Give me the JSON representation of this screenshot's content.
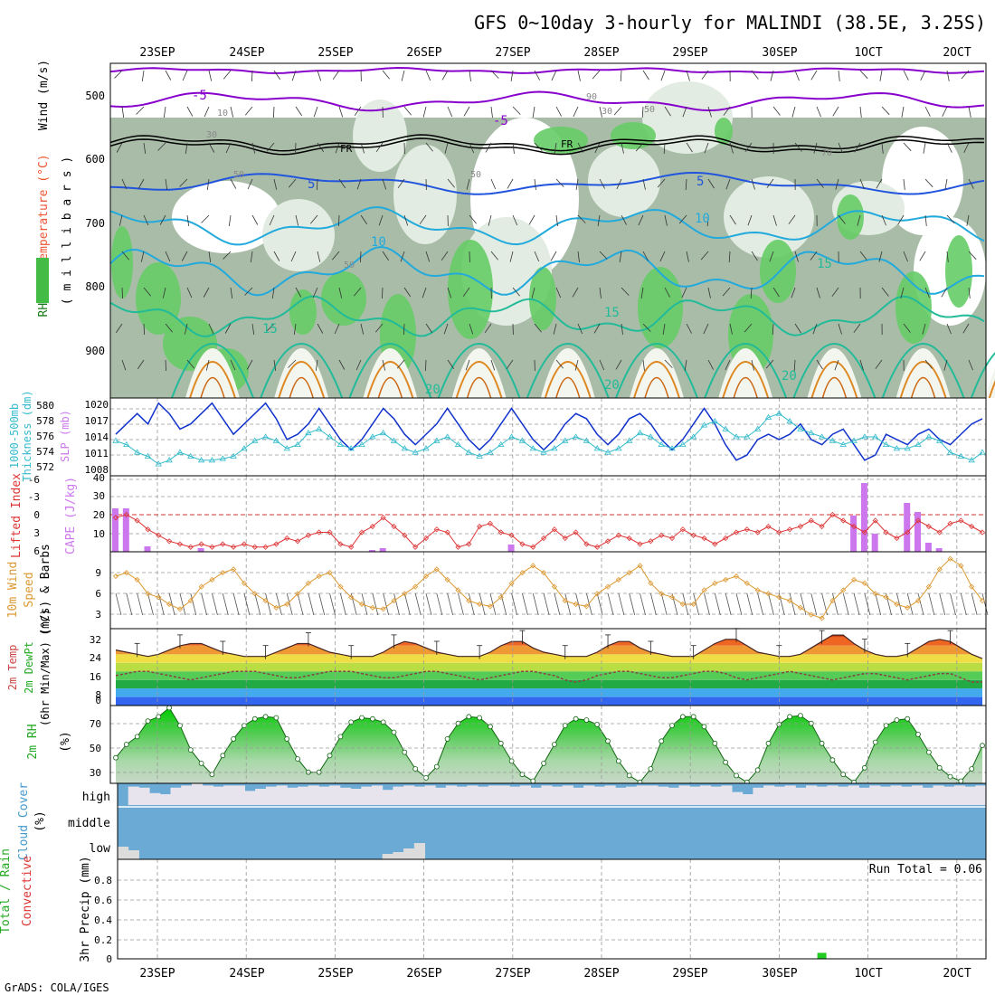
{
  "title": "GFS 0~10day 3-hourly for MALINDI (38.5E, 3.25S)",
  "footer": "GrADS: COLA/IGES",
  "dates": [
    "23SEP",
    "24SEP",
    "25SEP",
    "26SEP",
    "27SEP",
    "28SEP",
    "29SEP",
    "30SEP",
    "1OCT",
    "2OCT"
  ],
  "colors": {
    "frame": "#000000",
    "grid": "#999999",
    "rh_dark": "#a8bca8",
    "rh_mid": "#c8d8c8",
    "rh_light": "#e2ece2",
    "rh_green": "#66cc66",
    "temp_purple": "#8800cc",
    "temp_blue": "#2255dd",
    "temp_cyan": "#22aadd",
    "temp_teal": "#22bb99",
    "temp_orange": "#dd8822",
    "slp": "#1133cc",
    "thick": "#33bbcc",
    "lifted": "#dd3333",
    "cape": "#cc77ee",
    "wind": "#dd9933",
    "barb": "#555555",
    "rh2m": "#22bb22",
    "cloud": "#6aaad4",
    "cloud_gap": "#e8e4ee",
    "precip": "#22cc22"
  },
  "chart_data": [
    {
      "type": "heatmap",
      "name": "upper-air",
      "ylabel_parts": [
        "RH (%)",
        "Temperature (°C)",
        "Wind (m/s)"
      ],
      "yunit": "( m i l l i b a r s )",
      "y_ticks": [
        500,
        600,
        700,
        800,
        900
      ],
      "ylim": [
        950,
        450
      ],
      "freezing_label": "FR",
      "temp_contour_labels": [
        "-5",
        "-5",
        "5",
        "5",
        "10",
        "10",
        "15",
        "15",
        "15",
        "20",
        "20",
        "20"
      ],
      "rh_contour_labels": [
        "10",
        "30",
        "30",
        "50",
        "50",
        "50",
        "50",
        "70",
        "90"
      ]
    },
    {
      "type": "line",
      "name": "thickness-slp",
      "ylabel_left": [
        "1000-500mb",
        "Thickness (dm)"
      ],
      "ylabel_right": "SLP (mb)",
      "y_ticks_left": [
        572,
        574,
        576,
        578,
        580
      ],
      "y_ticks_right": [
        1008,
        1011,
        1014,
        1017,
        1020
      ],
      "slp": [
        1014,
        1016,
        1018,
        1016,
        1020,
        1018,
        1015,
        1016,
        1018,
        1020,
        1017,
        1014,
        1016,
        1018,
        1020,
        1017,
        1013,
        1014,
        1016,
        1019,
        1016,
        1013,
        1011,
        1013,
        1016,
        1019,
        1017,
        1014,
        1012,
        1014,
        1016,
        1019,
        1016,
        1013,
        1011,
        1013,
        1016,
        1019,
        1016,
        1013,
        1011,
        1013,
        1016,
        1018,
        1017,
        1014,
        1012,
        1014,
        1017,
        1018,
        1016,
        1013,
        1011,
        1013,
        1016,
        1019,
        1016,
        1012,
        1009,
        1010,
        1013,
        1014,
        1013,
        1014,
        1016,
        1013,
        1012,
        1014,
        1015,
        1012,
        1009,
        1010,
        1014,
        1013,
        1012,
        1014,
        1015,
        1013,
        1012,
        1014,
        1016,
        1017
      ],
      "thickness": [
        575.5,
        575.0,
        574.0,
        573.5,
        572.5,
        573.0,
        574.0,
        573.5,
        573.0,
        573.0,
        573.2,
        573.5,
        574.5,
        575.5,
        576.0,
        575.5,
        574.5,
        575.0,
        576.5,
        577.0,
        576.0,
        575.0,
        574.5,
        575.0,
        576.0,
        576.5,
        575.5,
        574.5,
        574.0,
        574.5,
        575.5,
        576.0,
        575.0,
        574.0,
        573.5,
        574.0,
        575.0,
        576.0,
        575.5,
        574.5,
        574.0,
        574.5,
        575.5,
        576.0,
        575.5,
        574.5,
        574.0,
        574.5,
        575.5,
        576.5,
        576.0,
        575.0,
        574.5,
        575.0,
        576.0,
        577.5,
        578.0,
        577.0,
        576.0,
        576.0,
        577.0,
        578.5,
        579.0,
        578.0,
        577.0,
        576.5,
        576.0,
        575.5,
        575.0,
        575.5,
        576.0,
        576.0,
        575.0,
        574.5,
        574.5,
        575.0,
        576.0,
        575.5,
        574.0,
        573.5,
        573.0,
        574.0
      ]
    },
    {
      "type": "bar",
      "name": "lifted-cape",
      "ylabel_left": "Lifted Index",
      "ylabel_right": "CAPE (J/kg)",
      "y_ticks_left": [
        "-6",
        "-3",
        "0",
        "3",
        "6"
      ],
      "y_ticks_right": [
        "10",
        "20",
        "30",
        "40"
      ],
      "cape": [
        24,
        24,
        0,
        3,
        0,
        0,
        0,
        0,
        2,
        0,
        0,
        0,
        0,
        0,
        0,
        0,
        0,
        0,
        0,
        0,
        0,
        0,
        0,
        0,
        1,
        2,
        0,
        0,
        0,
        0,
        0,
        0,
        0,
        0,
        0,
        0,
        0,
        4,
        0,
        0,
        0,
        0,
        0,
        0,
        0,
        0,
        0,
        0,
        0,
        0,
        0,
        0,
        0,
        0,
        0,
        0,
        0,
        0,
        0,
        0,
        0,
        0,
        0,
        0,
        0,
        0,
        0,
        0,
        0,
        20,
        38,
        10,
        0,
        0,
        27,
        22,
        5,
        2,
        0,
        0,
        0,
        0
      ],
      "lifted": [
        0.5,
        0,
        1,
        2.5,
        3.5,
        4.5,
        5,
        5.5,
        5,
        5.5,
        5,
        5.5,
        5,
        5.5,
        5.5,
        5,
        4,
        4.5,
        3.5,
        3,
        3,
        5,
        5.5,
        3,
        2,
        0.5,
        2,
        3.5,
        5.5,
        4,
        2.5,
        3,
        5.5,
        5,
        2,
        1.5,
        3,
        3.5,
        5,
        5.5,
        4,
        2.5,
        4,
        3,
        5,
        5.5,
        4.5,
        3.5,
        4,
        5,
        4.5,
        3.5,
        4,
        2.5,
        3.5,
        4,
        5,
        4,
        3,
        2.5,
        3,
        2,
        3,
        2.5,
        2,
        1,
        2,
        0,
        1,
        2,
        3,
        1,
        3,
        4,
        3,
        1,
        2,
        3,
        1.5,
        1,
        2,
        3
      ]
    },
    {
      "type": "line",
      "name": "wind10m",
      "ylabel": [
        "10m Wind",
        "Speed",
        "(m/s) & Barbs"
      ],
      "y_ticks": [
        "3",
        "6",
        "9"
      ],
      "ylim": [
        0,
        11
      ],
      "speed": [
        7.5,
        8,
        7,
        5,
        4.5,
        3.5,
        2.8,
        4,
        6,
        7,
        8,
        8.5,
        6.5,
        5,
        4,
        3,
        3.5,
        5,
        6.5,
        7.5,
        8,
        6,
        4.5,
        3.5,
        3,
        2.8,
        4,
        5,
        6,
        7.5,
        8.5,
        7,
        5.5,
        4,
        3.5,
        3.2,
        4.5,
        6.5,
        8,
        9,
        8,
        6,
        4,
        3.5,
        3.2,
        5,
        6,
        7,
        8,
        9,
        6.5,
        5,
        4.5,
        3.5,
        3.5,
        5.5,
        6.5,
        7,
        7.5,
        6.5,
        5.5,
        5,
        4.5,
        4,
        3,
        2,
        1.5,
        4,
        5.5,
        7,
        6.5,
        5,
        4.5,
        3.5,
        3,
        4,
        6,
        8.5,
        10,
        9,
        6,
        4
      ]
    },
    {
      "type": "area",
      "name": "temp2m",
      "ylabel": [
        "2m Temp",
        "2m DewPt",
        "(6hr Min/Max) (°C)"
      ],
      "y_ticks": [
        "0",
        "8",
        "16",
        "24",
        "32"
      ],
      "ylim": [
        0,
        36
      ],
      "temp": [
        26,
        25,
        24,
        23,
        24,
        26,
        28,
        29,
        29,
        27,
        25,
        24,
        23,
        23,
        23,
        25,
        27,
        29,
        29,
        27,
        25,
        24,
        23,
        23,
        23,
        25,
        28,
        30,
        29,
        27,
        25,
        24,
        23,
        23,
        23,
        25,
        28,
        30,
        30,
        27,
        25,
        24,
        23,
        23,
        23,
        25,
        28,
        30,
        30,
        27,
        25,
        24,
        23,
        23,
        23,
        26,
        29,
        31,
        31,
        28,
        25,
        24,
        23,
        23,
        24,
        27,
        30,
        33,
        33,
        29,
        26,
        24,
        23,
        23,
        24,
        27,
        30,
        31,
        30,
        27,
        24,
        22
      ],
      "dewpt": [
        14,
        15,
        16,
        16,
        15,
        14,
        13,
        12,
        13,
        14,
        15,
        16,
        16,
        16,
        15,
        14,
        13,
        13,
        14,
        15,
        16,
        16,
        16,
        15,
        14,
        13,
        13,
        14,
        15,
        16,
        16,
        15,
        14,
        13,
        12,
        13,
        14,
        15,
        16,
        16,
        15,
        14,
        12,
        11,
        12,
        14,
        15,
        16,
        16,
        15,
        14,
        13,
        13,
        14,
        15,
        16,
        16,
        15,
        13,
        12,
        13,
        14,
        15,
        16,
        15,
        14,
        13,
        12,
        13,
        14,
        15,
        15,
        14,
        13,
        12,
        13,
        14,
        15,
        15,
        13,
        11,
        11
      ]
    },
    {
      "type": "area",
      "name": "rh2m",
      "ylabel": [
        "2m RH",
        "(%)"
      ],
      "y_ticks": [
        "30",
        "50",
        "70"
      ],
      "ylim": [
        20,
        90
      ],
      "rh": [
        43,
        55,
        62,
        76,
        80,
        88,
        72,
        50,
        38,
        28,
        45,
        60,
        72,
        78,
        80,
        79,
        60,
        42,
        30,
        30,
        45,
        62,
        75,
        79,
        78,
        75,
        66,
        48,
        33,
        25,
        35,
        60,
        74,
        80,
        79,
        71,
        56,
        40,
        28,
        22,
        38,
        55,
        72,
        78,
        77,
        73,
        58,
        40,
        27,
        21,
        33,
        58,
        72,
        80,
        80,
        71,
        56,
        39,
        27,
        21,
        32,
        56,
        73,
        80,
        81,
        74,
        56,
        41,
        28,
        21,
        34,
        57,
        72,
        77,
        78,
        64,
        48,
        34,
        26,
        22,
        33,
        54
      ]
    },
    {
      "type": "bar",
      "name": "cloud-cover",
      "ylabel": [
        "Cloud Cover",
        "(%)"
      ],
      "levels": [
        "high",
        "middle",
        "low"
      ],
      "high_gap": [
        0,
        0.85,
        0.8,
        0.55,
        0.5,
        0.8,
        0.9,
        1,
        0.9,
        0.85,
        0.9,
        0.9,
        0.65,
        0.75,
        0.85,
        0.9,
        0.8,
        0.85,
        0.9,
        0.85,
        0.9,
        0.8,
        0.75,
        0.85,
        0.9,
        0.7,
        0.85,
        0.9,
        0.85,
        0.9,
        0.8,
        0.9,
        0.85,
        0.9,
        0.85,
        0.9,
        0.9,
        0.85,
        0.9,
        0.8,
        0.9,
        0.85,
        0.9,
        0.8,
        0.9,
        0.85,
        0.9,
        0.8,
        0.85,
        0.9,
        0.9,
        0.85,
        0.8,
        0.9,
        0.85,
        0.9,
        0.85,
        0.9,
        0.6,
        0.5,
        0.8,
        0.9,
        0.85,
        0.9,
        0.8,
        0.9,
        0.85,
        0.9,
        0.85,
        0.9,
        0.8,
        0.9,
        0.85,
        0.9,
        0.85,
        0.9,
        0.8,
        0.9,
        0.85,
        0.9,
        0.85,
        0.9
      ],
      "low_gap": [
        0.7,
        0.5,
        0.0,
        0.0,
        0.0,
        0.0,
        0.0,
        0.0,
        0.0,
        0.0,
        0.0,
        0.0,
        0.0,
        0.0,
        0.0,
        0.0,
        0.0,
        0.0,
        0.0,
        0.0,
        0.0,
        0.0,
        0.0,
        0.0,
        0.0,
        0.3,
        0.4,
        0.6,
        0.9,
        0.0,
        0.0,
        0.0,
        0.0,
        0.0,
        0.0,
        0.0,
        0.0,
        0.0,
        0.0,
        0.0,
        0.0,
        0.0,
        0.0,
        0.0,
        0.0,
        0.0,
        0.0,
        0.0,
        0.0,
        0.0,
        0.0,
        0.0,
        0.0,
        0.0,
        0.0,
        0.0,
        0.0,
        0.0,
        0.0,
        0.0,
        0.0,
        0.0,
        0.0,
        0.0,
        0.0,
        0.0,
        0.0,
        0.0,
        0.0,
        0.0,
        0.0,
        0.0,
        0.0,
        0.0,
        0.0,
        0.0,
        0.0,
        0.0,
        0.0,
        0.0,
        0.0,
        0.0
      ]
    },
    {
      "type": "bar",
      "name": "precip",
      "ylabel": [
        "Total / Rain",
        "Convective",
        "3hr Precip (mm)"
      ],
      "y_ticks": [
        "0",
        "0.2",
        "0.4",
        "0.6",
        "0.8"
      ],
      "ylim": [
        0,
        1.0
      ],
      "run_total_label": "Run Total = 0.06",
      "precip_bar_index": 66,
      "precip_bar_value": 0.06
    }
  ]
}
